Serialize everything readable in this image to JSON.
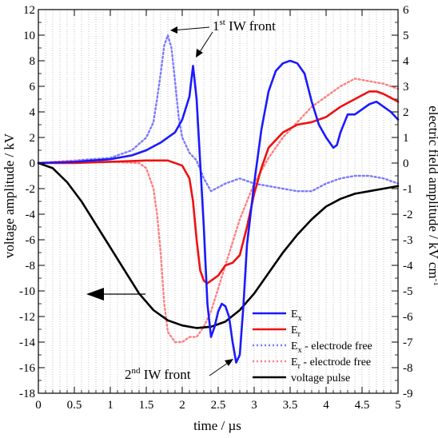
{
  "chart_data": {
    "type": "line",
    "title": "",
    "xlabel": "time / µs",
    "ylabel_left": "voltage amplitude / kV",
    "ylabel_right": "electric field amplitude / kV cm",
    "ylabel_right_sup": "-1",
    "xlim": [
      0,
      5
    ],
    "ylim_left": [
      -18,
      12
    ],
    "ylim_right": [
      -9,
      6
    ],
    "x_ticks": [
      0,
      0.5,
      1,
      1.5,
      2,
      2.5,
      3,
      3.5,
      4,
      4.5,
      5
    ],
    "x_tick_labels": [
      "0",
      "0.5",
      "1",
      "1.5",
      "2",
      "2.5",
      "3",
      "3.5",
      "4",
      "4.5",
      "5"
    ],
    "y_left_ticks": [
      12,
      10,
      8,
      6,
      4,
      2,
      0,
      -2,
      -4,
      -6,
      -8,
      -10,
      -12,
      -14,
      -16,
      -18
    ],
    "y_right_ticks": [
      6,
      5,
      4,
      3,
      2,
      1,
      0,
      -1,
      -2,
      -3,
      -4,
      -5,
      -6,
      -7,
      -8,
      -9
    ],
    "grid": "vertical dotted at 0.1 µs",
    "legend_position": "bottom-right",
    "legend": [
      {
        "label": "E",
        "sub": "x",
        "suffix": "",
        "color": "#1a1aff",
        "dash": "solid"
      },
      {
        "label": "E",
        "sub": "r",
        "suffix": "",
        "color": "#ee1111",
        "dash": "solid"
      },
      {
        "label": "E",
        "sub": "x",
        "suffix": " - electrode free",
        "color": "#7a7aff",
        "dash": "dotted"
      },
      {
        "label": "E",
        "sub": "r",
        "suffix": " - electrode free",
        "color": "#ff8080",
        "dash": "dotted"
      },
      {
        "label": "voltage pulse",
        "sub": "",
        "suffix": "",
        "color": "#000000",
        "dash": "solid"
      }
    ],
    "annotations": {
      "first_front": {
        "num": "1",
        "sup": "st",
        "text": " IW front"
      },
      "second_front": {
        "num": "2",
        "sup": "nd",
        "text": " IW front"
      }
    },
    "series": [
      {
        "name": "voltage pulse",
        "axis": "left",
        "color": "#000000",
        "dash": "solid",
        "x": [
          0,
          0.2,
          0.4,
          0.6,
          0.8,
          1.0,
          1.2,
          1.4,
          1.6,
          1.8,
          2.0,
          2.2,
          2.4,
          2.5,
          2.6,
          2.8,
          3.0,
          3.2,
          3.4,
          3.6,
          3.8,
          4.0,
          4.2,
          4.4,
          4.6,
          4.8,
          5.0
        ],
        "y": [
          0,
          -0.4,
          -1.5,
          -3.0,
          -4.8,
          -6.6,
          -8.4,
          -10.2,
          -11.5,
          -12.3,
          -12.7,
          -12.9,
          -12.8,
          -12.6,
          -12.4,
          -11.5,
          -10.2,
          -8.6,
          -7.0,
          -5.6,
          -4.4,
          -3.4,
          -2.8,
          -2.4,
          -2.2,
          -2.0,
          -1.8
        ]
      },
      {
        "name": "E_x",
        "axis": "right",
        "color": "#1a1aff",
        "dash": "solid",
        "x": [
          0,
          0.5,
          1.0,
          1.3,
          1.5,
          1.7,
          1.9,
          2.0,
          2.1,
          2.15,
          2.2,
          2.3,
          2.35,
          2.4,
          2.45,
          2.5,
          2.55,
          2.6,
          2.65,
          2.7,
          2.75,
          2.8,
          2.85,
          2.9,
          3.0,
          3.1,
          3.2,
          3.3,
          3.4,
          3.5,
          3.6,
          3.7,
          3.8,
          3.9,
          4.0,
          4.1,
          4.15,
          4.2,
          4.3,
          4.4,
          4.5,
          4.6,
          4.7,
          4.8,
          4.9,
          5.0
        ],
        "y": [
          0,
          0.05,
          0.15,
          0.3,
          0.5,
          0.8,
          1.2,
          1.7,
          2.6,
          3.8,
          2.5,
          -2.5,
          -5.5,
          -6.8,
          -6.4,
          -5.8,
          -5.5,
          -5.6,
          -6.0,
          -7.0,
          -7.8,
          -7.5,
          -5.6,
          -3.2,
          -0.8,
          1.3,
          2.8,
          3.6,
          3.9,
          4.0,
          3.9,
          3.5,
          2.4,
          1.5,
          1.0,
          0.6,
          0.7,
          1.2,
          1.9,
          1.9,
          2.1,
          2.3,
          2.4,
          2.2,
          2.0,
          1.7
        ]
      },
      {
        "name": "E_r",
        "axis": "right",
        "color": "#ee1111",
        "dash": "solid",
        "x": [
          0,
          0.5,
          1.0,
          1.5,
          1.8,
          2.0,
          2.1,
          2.15,
          2.2,
          2.25,
          2.3,
          2.35,
          2.4,
          2.5,
          2.6,
          2.7,
          2.8,
          2.9,
          3.0,
          3.1,
          3.2,
          3.4,
          3.6,
          3.8,
          4.0,
          4.2,
          4.4,
          4.6,
          4.7,
          4.8,
          5.0
        ],
        "y": [
          0,
          0,
          0.05,
          0.1,
          0.1,
          -0.1,
          -0.6,
          -1.5,
          -3.0,
          -4.2,
          -4.6,
          -4.7,
          -4.6,
          -4.4,
          -4.0,
          -3.9,
          -3.6,
          -2.5,
          -1.2,
          -0.2,
          0.6,
          1.2,
          1.5,
          1.6,
          1.8,
          2.2,
          2.5,
          2.8,
          2.8,
          2.7,
          2.4
        ]
      },
      {
        "name": "E_x - electrode free",
        "axis": "right",
        "color": "#7a7aff",
        "dash": "dotted",
        "x": [
          0,
          0.5,
          1.0,
          1.3,
          1.5,
          1.6,
          1.65,
          1.7,
          1.75,
          1.8,
          1.85,
          1.9,
          1.95,
          2.0,
          2.1,
          2.2,
          2.3,
          2.4,
          2.6,
          2.8,
          3.0,
          3.2,
          3.4,
          3.6,
          3.8,
          4.0,
          4.2,
          4.4,
          4.6,
          4.8,
          5.0
        ],
        "y": [
          0,
          0.1,
          0.2,
          0.5,
          1.0,
          1.6,
          2.5,
          3.5,
          4.6,
          5.0,
          4.5,
          3.2,
          1.8,
          1.0,
          0.4,
          0.1,
          -0.6,
          -1.1,
          -0.8,
          -0.6,
          -0.8,
          -0.9,
          -1.0,
          -1.1,
          -1.1,
          -0.8,
          -0.6,
          -0.5,
          -0.5,
          -0.6,
          -0.8
        ]
      },
      {
        "name": "E_r - electrode free",
        "axis": "right",
        "color": "#ff8080",
        "dash": "dotted",
        "x": [
          0,
          0.5,
          1.0,
          1.4,
          1.5,
          1.6,
          1.65,
          1.7,
          1.75,
          1.8,
          1.9,
          2.0,
          2.1,
          2.2,
          2.3,
          2.4,
          2.6,
          2.8,
          3.0,
          3.2,
          3.4,
          3.6,
          3.8,
          4.0,
          4.2,
          4.4,
          4.6,
          4.8,
          5.0
        ],
        "y": [
          0,
          0.1,
          0.05,
          0,
          -0.2,
          -1.0,
          -2.0,
          -3.5,
          -5.5,
          -6.6,
          -7.0,
          -7.0,
          -6.8,
          -6.8,
          -6.4,
          -5.8,
          -4.0,
          -2.2,
          -0.8,
          0.2,
          1.0,
          1.6,
          2.2,
          2.6,
          3.0,
          3.3,
          3.2,
          3.1,
          2.9
        ]
      }
    ]
  }
}
